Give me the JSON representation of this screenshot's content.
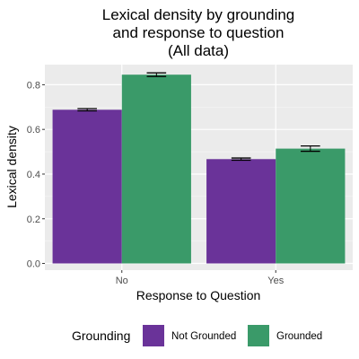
{
  "chart_data": {
    "type": "bar",
    "title_lines": [
      "Lexical density by grounding",
      "and response to question",
      "(All data)"
    ],
    "xlabel": "Response to Question",
    "ylabel": "Lexical density",
    "categories": [
      "No",
      "Yes"
    ],
    "ylim": [
      -0.03,
      0.89
    ],
    "yticks": [
      0.0,
      0.2,
      0.4,
      0.6,
      0.8
    ],
    "ytick_labels": [
      "0.0",
      "0.2",
      "0.4",
      "0.6",
      "0.8"
    ],
    "grid": true,
    "legend_position": "bottom",
    "legend_title": "Grounding",
    "series": [
      {
        "name": "Not Grounded",
        "color": "#6a3399",
        "values": [
          0.688,
          0.467
        ],
        "errors": [
          0.005,
          0.005
        ]
      },
      {
        "name": "Grounded",
        "color": "#3a9a69",
        "values": [
          0.845,
          0.514
        ],
        "errors": [
          0.008,
          0.012
        ]
      }
    ]
  }
}
